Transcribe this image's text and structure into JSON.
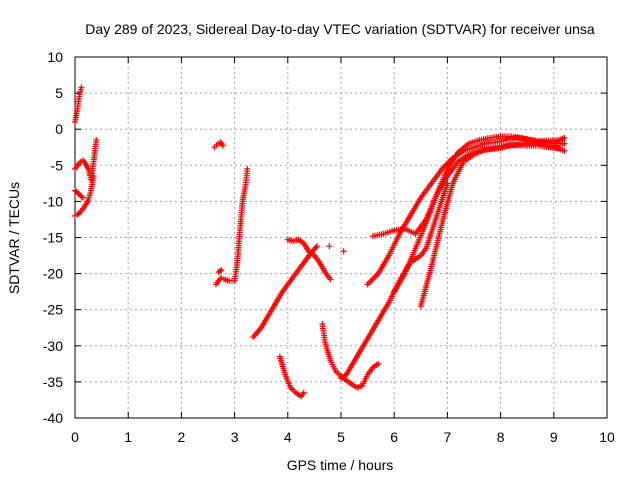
{
  "chart_data": {
    "type": "scatter",
    "title": "Day 289 of 2023, Sidereal Day-to-day VTEC variation (SDTVAR) for receiver unsa",
    "xlabel": "GPS time / hours",
    "ylabel": "SDTVAR / TECUs",
    "xlim": [
      0,
      10
    ],
    "ylim": [
      -40,
      10
    ],
    "x_ticks": [
      "0",
      "1",
      "2",
      "3",
      "4",
      "5",
      "6",
      "7",
      "8",
      "9",
      "10"
    ],
    "y_ticks": [
      "10",
      "5",
      "0",
      "-5",
      "-10",
      "-15",
      "-20",
      "-25",
      "-30",
      "-35",
      "-40"
    ],
    "grid": true,
    "legend": "none",
    "marker": "+",
    "color": "#ff0000",
    "segments": [
      {
        "x": [
          0.0,
          0.04,
          0.06,
          0.08,
          0.1,
          0.12
        ],
        "y": [
          1.0,
          2.5,
          3.5,
          4.5,
          5.2,
          5.8
        ]
      },
      {
        "x": [
          0.0,
          0.05,
          0.1,
          0.15,
          0.2,
          0.25,
          0.3,
          0.35,
          0.4
        ],
        "y": [
          -5.5,
          -5.0,
          -4.5,
          -4.3,
          -4.8,
          -5.5,
          -7.0,
          -4.5,
          -1.5
        ]
      },
      {
        "x": [
          0.0,
          0.05,
          0.1,
          0.15,
          0.2,
          0.25,
          0.3,
          0.35
        ],
        "y": [
          -12.0,
          -11.8,
          -11.5,
          -11.0,
          -10.5,
          -9.8,
          -8.5,
          -6.5
        ]
      },
      {
        "x": [
          0.0,
          0.05,
          0.1,
          0.15
        ],
        "y": [
          -8.5,
          -8.8,
          -9.2,
          -9.5
        ]
      },
      {
        "x": [
          2.62,
          2.66,
          2.7,
          2.74,
          2.78
        ],
        "y": [
          -2.5,
          -2.2,
          -2.0,
          -1.8,
          -2.3
        ]
      },
      {
        "x": [
          2.65,
          2.7,
          2.75,
          2.8,
          2.9,
          3.0,
          3.05,
          3.1,
          3.15,
          3.2,
          3.24
        ],
        "y": [
          -21.5,
          -21.0,
          -20.6,
          -20.8,
          -21.0,
          -21.0,
          -18.5,
          -14.0,
          -10.0,
          -8.0,
          -5.5
        ]
      },
      {
        "x": [
          2.7,
          2.75
        ],
        "y": [
          -19.8,
          -19.5
        ]
      },
      {
        "x": [
          3.35,
          3.5,
          3.7,
          3.9,
          4.1,
          4.3,
          4.45,
          4.55
        ],
        "y": [
          -28.8,
          -27.5,
          -25.0,
          -22.5,
          -20.5,
          -18.5,
          -17.0,
          -16.2
        ]
      },
      {
        "x": [
          4.0,
          4.1,
          4.2,
          4.3,
          4.4,
          4.5,
          4.6,
          4.7,
          4.8
        ],
        "y": [
          -15.3,
          -15.5,
          -15.3,
          -15.8,
          -17.0,
          -17.5,
          -18.5,
          -19.8,
          -20.8
        ]
      },
      {
        "x": [
          4.78
        ],
        "y": [
          -16.2
        ]
      },
      {
        "x": [
          5.05
        ],
        "y": [
          -16.9
        ]
      },
      {
        "x": [
          3.85,
          3.95,
          4.05,
          4.15,
          4.25,
          4.3
        ],
        "y": [
          -31.5,
          -34.0,
          -35.8,
          -36.5,
          -37.0,
          -36.5
        ]
      },
      {
        "x": [
          4.65,
          4.7,
          4.8,
          4.9,
          5.0,
          5.1,
          5.2,
          5.3,
          5.4,
          5.5,
          5.6,
          5.7
        ],
        "y": [
          -27.0,
          -29.5,
          -32.0,
          -33.5,
          -34.2,
          -34.8,
          -35.3,
          -35.8,
          -35.5,
          -34.0,
          -33.0,
          -32.5
        ]
      },
      {
        "x": [
          5.0,
          5.1,
          5.3,
          5.5,
          5.7,
          5.9,
          6.1,
          6.3,
          6.5,
          6.6,
          6.8,
          7.0
        ],
        "y": [
          -34.5,
          -34.0,
          -31.5,
          -29.0,
          -26.5,
          -24.0,
          -21.0,
          -18.5,
          -17.5,
          -16.5,
          -12.0,
          -7.5
        ]
      },
      {
        "x": [
          5.5,
          5.7,
          5.9,
          6.1,
          6.3,
          6.5,
          6.7,
          6.9,
          7.1,
          7.3,
          7.5,
          7.7,
          7.9,
          8.1,
          8.3,
          8.5,
          8.7,
          8.9,
          9.1,
          9.2
        ],
        "y": [
          -21.5,
          -20.0,
          -17.5,
          -14.5,
          -12.0,
          -9.5,
          -7.5,
          -5.5,
          -4.0,
          -3.0,
          -2.5,
          -2.0,
          -1.8,
          -1.5,
          -1.2,
          -1.4,
          -1.6,
          -1.6,
          -1.5,
          -1.2
        ]
      },
      {
        "x": [
          5.6,
          5.8,
          6.0,
          6.2,
          6.4,
          6.6,
          6.8,
          7.0,
          7.2,
          7.4,
          7.6,
          7.8,
          8.0,
          8.2,
          8.4,
          8.6,
          8.8,
          9.0,
          9.2
        ],
        "y": [
          -14.8,
          -14.5,
          -14.0,
          -13.8,
          -14.5,
          -12.5,
          -9.0,
          -6.5,
          -4.5,
          -3.5,
          -3.0,
          -2.8,
          -2.6,
          -2.2,
          -2.0,
          -1.8,
          -1.8,
          -2.0,
          -2.0
        ]
      },
      {
        "x": [
          6.0,
          6.2,
          6.4,
          6.6,
          6.8,
          7.0,
          7.2,
          7.4,
          7.6,
          7.8,
          8.0,
          8.2,
          8.4,
          8.6,
          8.8,
          9.0,
          9.2
        ],
        "y": [
          -22.5,
          -20.0,
          -16.5,
          -13.0,
          -9.0,
          -5.5,
          -3.2,
          -2.0,
          -1.5,
          -1.2,
          -1.0,
          -1.0,
          -1.2,
          -1.6,
          -2.0,
          -2.5,
          -3.0
        ]
      },
      {
        "x": [
          6.5,
          6.7,
          6.9,
          7.1,
          7.3,
          7.5,
          7.7,
          7.9,
          8.1,
          8.3,
          8.5,
          8.7,
          8.9,
          9.1
        ],
        "y": [
          -24.5,
          -19.0,
          -13.0,
          -7.5,
          -4.5,
          -3.5,
          -2.8,
          -2.6,
          -2.3,
          -2.2,
          -2.3,
          -2.3,
          -2.5,
          -2.6
        ]
      }
    ]
  }
}
